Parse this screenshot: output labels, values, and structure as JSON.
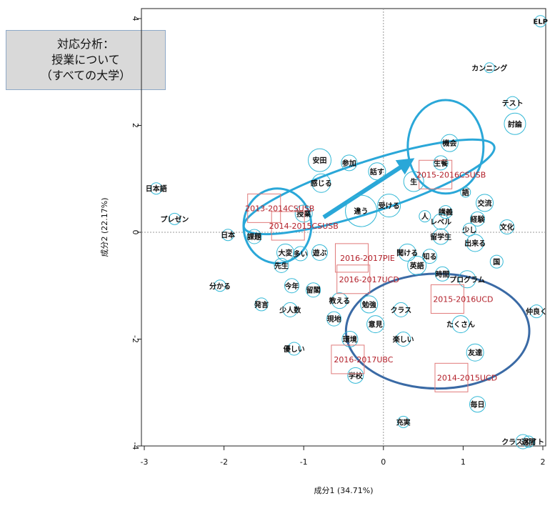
{
  "title_box": {
    "line1": "対応分析：",
    "line2": "授業について",
    "line3": "（すべての大学）"
  },
  "chart_data": {
    "type": "scatter",
    "xlabel": "成分1 (34.71%)",
    "ylabel": "成分2 (22.17%)",
    "xlim": [
      -3,
      2
    ],
    "ylim": [
      -4,
      4
    ],
    "x_ticks": [
      -3,
      -2,
      -1,
      0,
      1,
      2
    ],
    "y_ticks": [
      -4,
      -2,
      0,
      2,
      4
    ],
    "words": [
      {
        "label": "ELP",
        "x": 1.97,
        "y": 3.95,
        "r": 8
      },
      {
        "label": "カンニング",
        "x": 1.33,
        "y": 3.08,
        "r": 7
      },
      {
        "label": "テスト",
        "x": 1.62,
        "y": 2.42,
        "r": 9
      },
      {
        "label": "討論",
        "x": 1.65,
        "y": 2.03,
        "r": 15
      },
      {
        "label": "機会",
        "x": 0.83,
        "y": 1.67,
        "r": 12
      },
      {
        "label": "生餐",
        "x": 0.72,
        "y": 1.3,
        "r": 10
      },
      {
        "label": "安田",
        "x": -0.8,
        "y": 1.35,
        "r": 16
      },
      {
        "label": "参加",
        "x": -0.43,
        "y": 1.3,
        "r": 11
      },
      {
        "label": "話す",
        "x": -0.08,
        "y": 1.14,
        "r": 12
      },
      {
        "label": "生",
        "x": 0.38,
        "y": 0.95,
        "r": 14
      },
      {
        "label": "感じる",
        "x": -0.78,
        "y": 0.92,
        "r": 13
      },
      {
        "label": "日本語",
        "x": -2.85,
        "y": 0.82,
        "r": 8
      },
      {
        "label": "語",
        "x": 1.03,
        "y": 0.75,
        "r": 7
      },
      {
        "label": "受ける",
        "x": 0.07,
        "y": 0.5,
        "r": 16
      },
      {
        "label": "交流",
        "x": 1.27,
        "y": 0.55,
        "r": 12
      },
      {
        "label": "違う",
        "x": -0.28,
        "y": 0.4,
        "r": 22
      },
      {
        "label": "経験",
        "x": 1.18,
        "y": 0.25,
        "r": 10
      },
      {
        "label": "授業",
        "x": -1.0,
        "y": 0.35,
        "r": 12
      },
      {
        "label": "人",
        "x": 0.52,
        "y": 0.3,
        "r": 8
      },
      {
        "label": "講義",
        "x": 0.78,
        "y": 0.38,
        "r": 9
      },
      {
        "label": "レベル",
        "x": 0.72,
        "y": 0.2,
        "r": 11
      },
      {
        "label": "文化",
        "x": 1.55,
        "y": 0.1,
        "r": 10
      },
      {
        "label": "少し",
        "x": 1.08,
        "y": 0.05,
        "r": 9
      },
      {
        "label": "プレゼン",
        "x": -2.62,
        "y": 0.25,
        "r": 8
      },
      {
        "label": "日本",
        "x": -1.95,
        "y": -0.05,
        "r": 8
      },
      {
        "label": "留学生",
        "x": 0.72,
        "y": -0.08,
        "r": 11
      },
      {
        "label": "課題",
        "x": -1.62,
        "y": -0.08,
        "r": 10
      },
      {
        "label": "出来る",
        "x": 1.15,
        "y": -0.2,
        "r": 12
      },
      {
        "label": "大変",
        "x": -1.23,
        "y": -0.38,
        "r": 12
      },
      {
        "label": "多い",
        "x": -1.04,
        "y": -0.4,
        "r": 10
      },
      {
        "label": "遊ぶ",
        "x": -0.8,
        "y": -0.38,
        "r": 11
      },
      {
        "label": "聞ける",
        "x": 0.3,
        "y": -0.38,
        "r": 12
      },
      {
        "label": "知る",
        "x": 0.58,
        "y": -0.45,
        "r": 10
      },
      {
        "label": "国",
        "x": 1.42,
        "y": -0.55,
        "r": 9
      },
      {
        "label": "英語",
        "x": 0.42,
        "y": -0.62,
        "r": 13
      },
      {
        "label": "先生",
        "x": -1.28,
        "y": -0.62,
        "r": 10
      },
      {
        "label": "時間",
        "x": 0.74,
        "y": -0.78,
        "r": 10
      },
      {
        "label": "プログラム",
        "x": 1.05,
        "y": -0.88,
        "r": 12
      },
      {
        "label": "分かる",
        "x": -2.05,
        "y": -1.0,
        "r": 8
      },
      {
        "label": "今年",
        "x": -1.15,
        "y": -1.0,
        "r": 10
      },
      {
        "label": "留閣",
        "x": -0.88,
        "y": -1.08,
        "r": 10
      },
      {
        "label": "教える",
        "x": -0.55,
        "y": -1.28,
        "r": 11
      },
      {
        "label": "勉強",
        "x": -0.18,
        "y": -1.35,
        "r": 12
      },
      {
        "label": "発言",
        "x": -1.53,
        "y": -1.35,
        "r": 9
      },
      {
        "label": "少人数",
        "x": -1.17,
        "y": -1.45,
        "r": 10
      },
      {
        "label": "クラス",
        "x": 0.22,
        "y": -1.45,
        "r": 10
      },
      {
        "label": "仲良く",
        "x": 1.92,
        "y": -1.48,
        "r": 9
      },
      {
        "label": "現地",
        "x": -0.62,
        "y": -1.62,
        "r": 10
      },
      {
        "label": "意見",
        "x": -0.1,
        "y": -1.72,
        "r": 12
      },
      {
        "label": "たくさん",
        "x": 0.97,
        "y": -1.72,
        "r": 12
      },
      {
        "label": "環境",
        "x": -0.42,
        "y": -2.0,
        "r": 11
      },
      {
        "label": "楽しい",
        "x": 0.25,
        "y": -2.0,
        "r": 10
      },
      {
        "label": "優しい",
        "x": -1.12,
        "y": -2.18,
        "r": 9
      },
      {
        "label": "友達",
        "x": 1.15,
        "y": -2.25,
        "r": 12
      },
      {
        "label": "学校",
        "x": -0.35,
        "y": -2.68,
        "r": 11
      },
      {
        "label": "毎日",
        "x": 1.18,
        "y": -3.22,
        "r": 11
      },
      {
        "label": "充実",
        "x": 0.25,
        "y": -3.55,
        "r": 8
      },
      {
        "label": "クラスメイト",
        "x": 1.75,
        "y": -5.0,
        "r": 10
      },
      {
        "label": "週間",
        "x": 1.82,
        "y": -5.55,
        "r": 8
      }
    ],
    "years": [
      {
        "label": "2015-2016CSUSB",
        "x": 0.85,
        "y": 1.08
      },
      {
        "label": "2013-2014CSUSB",
        "x": -1.3,
        "y": 0.45
      },
      {
        "label": "2014-2015CSUSB",
        "x": -1.0,
        "y": 0.12
      },
      {
        "label": "2016-2017PIE",
        "x": -0.2,
        "y": -0.48
      },
      {
        "label": "2016-2017UCD",
        "x": -0.18,
        "y": -0.88
      },
      {
        "label": "2015-2016UCD",
        "x": 1.0,
        "y": -1.25
      },
      {
        "label": "2016-2017UBC",
        "x": -0.25,
        "y": -2.38
      },
      {
        "label": "2014-2015UCD",
        "x": 1.05,
        "y": -2.72
      }
    ],
    "circles": [
      {
        "name": "csusb-2015-circle",
        "cx": 0.78,
        "cy": 1.6,
        "rx": 0.95,
        "ry": 1.75,
        "color": "#2aa7d8"
      },
      {
        "name": "csusb-2013-2014-circle",
        "cx": -1.33,
        "cy": 0.12,
        "rx": 0.85,
        "ry": 1.4,
        "color": "#2aa7d8"
      },
      {
        "name": "csusb-all-ellipse",
        "cx": -0.18,
        "cy": 0.85,
        "rx": 3.3,
        "ry": 0.95,
        "color": "#2aa7d8",
        "rotate": -18
      },
      {
        "name": "ucd-ubc-ellipse",
        "cx": 0.68,
        "cy": -1.85,
        "rx": 2.3,
        "ry": 2.15,
        "color": "#3a6aa5"
      }
    ],
    "arrow": {
      "from": [
        -0.75,
        0.28
      ],
      "to": [
        0.3,
        1.3
      ],
      "color": "#2aa7d8"
    }
  }
}
